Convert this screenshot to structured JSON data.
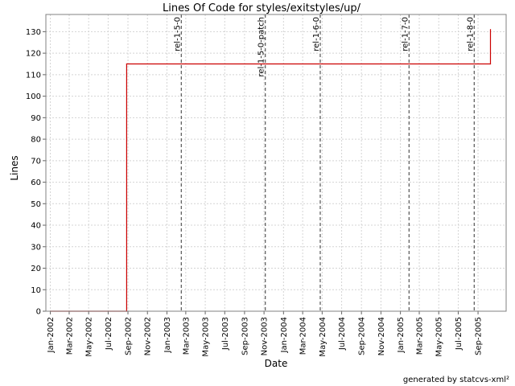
{
  "chart_data": {
    "type": "line",
    "title": "Lines Of Code for styles/exitstyles/up/",
    "xlabel": "Date",
    "ylabel": "Lines",
    "ylim": [
      0,
      138
    ],
    "xlim": [
      "2001-12-18",
      "2005-11-28"
    ],
    "y_ticks": [
      0,
      10,
      20,
      30,
      40,
      50,
      60,
      70,
      80,
      90,
      100,
      110,
      120,
      130
    ],
    "x_ticks": [
      "Jan-2002",
      "Mar-2002",
      "May-2002",
      "Jul-2002",
      "Sep-2002",
      "Nov-2002",
      "Jan-2003",
      "Mar-2003",
      "May-2003",
      "Jul-2003",
      "Sep-2003",
      "Nov-2003",
      "Jan-2004",
      "Mar-2004",
      "May-2004",
      "Jul-2004",
      "Sep-2004",
      "Nov-2004",
      "Jan-2005",
      "Mar-2005",
      "May-2005",
      "Jul-2005",
      "Sep-2005"
    ],
    "grid": true,
    "series": [
      {
        "color": "#cc0000",
        "step": true,
        "points": [
          {
            "x": "2002-01-01",
            "y": 0
          },
          {
            "x": "2002-08-28",
            "y": 0
          },
          {
            "x": "2002-08-28",
            "y": 115
          },
          {
            "x": "2005-10-10",
            "y": 115
          },
          {
            "x": "2005-10-10",
            "y": 131
          }
        ]
      }
    ],
    "markers": [
      {
        "label": "rel-1-5-0",
        "x": "2003-02-15"
      },
      {
        "label": "rel-1-5-0-patch",
        "x": "2003-11-05"
      },
      {
        "label": "rel-1-6-0",
        "x": "2004-04-25"
      },
      {
        "label": "rel-1-7-0",
        "x": "2005-01-28"
      },
      {
        "label": "rel-1-8-0",
        "x": "2005-08-20"
      }
    ]
  },
  "footer": "generated by statcvs-xml²"
}
